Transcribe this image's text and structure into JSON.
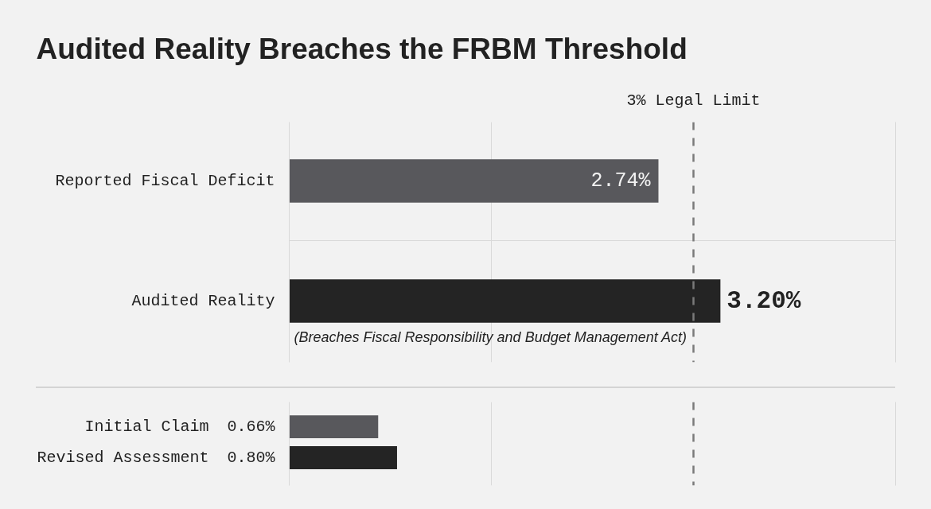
{
  "chart_data": [
    {
      "type": "bar",
      "orientation": "horizontal",
      "title": "Audited Reality Breaches the FRBM Threshold",
      "categories": [
        "Reported Fiscal Deficit",
        "Audited Reality"
      ],
      "values": [
        2.74,
        3.2
      ],
      "colors": [
        "#58585c",
        "#242424"
      ],
      "value_labels": [
        "2.74%",
        "3.20%"
      ],
      "xlim": [
        0,
        4.5
      ],
      "xticks": [
        {
          "value": 1.5,
          "label": null
        }
      ],
      "grid": true,
      "tick_labels": "y",
      "ref_lines": [
        {
          "axis": "x",
          "value": 3,
          "label": "3% Legal Limit",
          "color": "#7a7a7a",
          "line_style": "dashed"
        }
      ],
      "annotations": [
        "(Breaches Fiscal Responsibility and Budget Management Act)"
      ]
    },
    {
      "type": "bar",
      "orientation": "horizontal",
      "categories": [
        "Initial Claim",
        "Revised Assessment"
      ],
      "values": [
        0.66,
        0.8
      ],
      "colors": [
        "#58585c",
        "#242424"
      ],
      "value_labels": [
        "0.66%",
        "0.80%"
      ],
      "xlim": [
        0,
        4.5
      ],
      "xticks": [
        {
          "value": 1.5,
          "label": null
        }
      ],
      "grid": "x",
      "tick_labels": "y",
      "ref_lines": [
        {
          "axis": "x",
          "value": 3,
          "color": "#7a7a7a",
          "line_style": "dashed"
        }
      ]
    }
  ]
}
